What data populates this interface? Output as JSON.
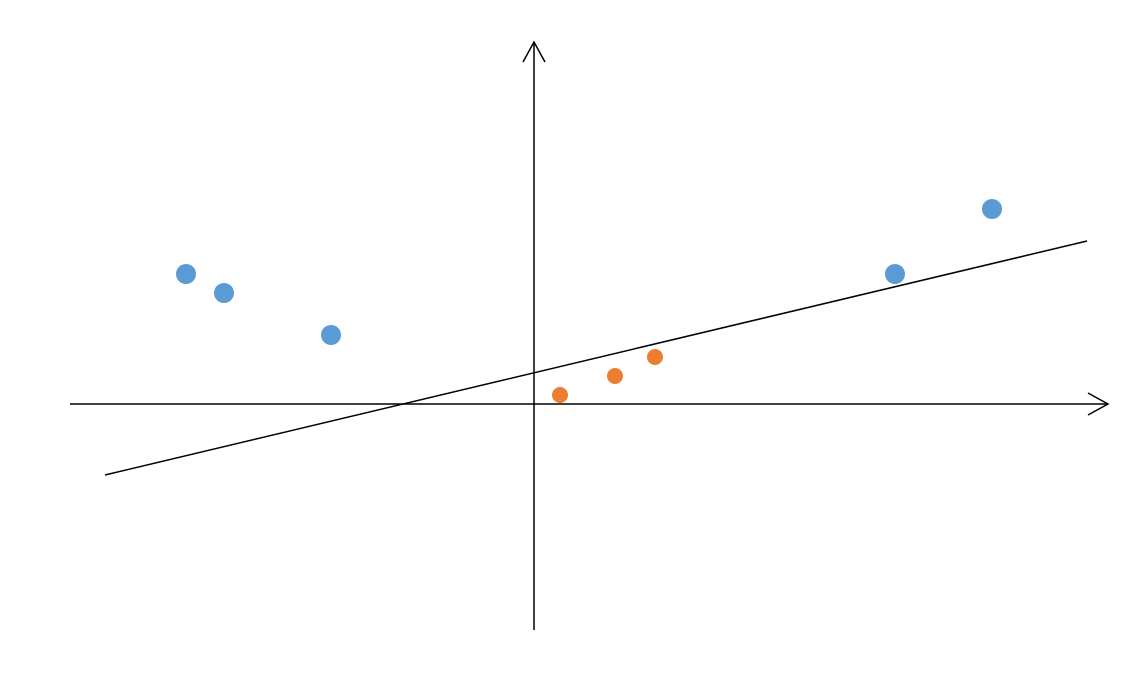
{
  "chart_data": {
    "type": "scatter",
    "xlim": [
      -4.64,
      5.74
    ],
    "ylim": [
      -2.26,
      3.62
    ],
    "series": [
      {
        "color": "#5b9bd5",
        "size": 10,
        "x": [
          -3.48,
          -3.1,
          -2.03,
          3.61,
          4.58
        ],
        "values": [
          1.3,
          1.11,
          0.69,
          1.3,
          1.95
        ]
      },
      {
        "color": "#ed7d31",
        "size": 8,
        "x": [
          0.26,
          0.81,
          1.21
        ],
        "values": [
          0.09,
          0.28,
          0.47
        ]
      }
    ],
    "fit_line": {
      "color": "#000000",
      "x": [
        -4.29,
        5.53
      ],
      "values": [
        -0.71,
        1.63
      ]
    }
  }
}
